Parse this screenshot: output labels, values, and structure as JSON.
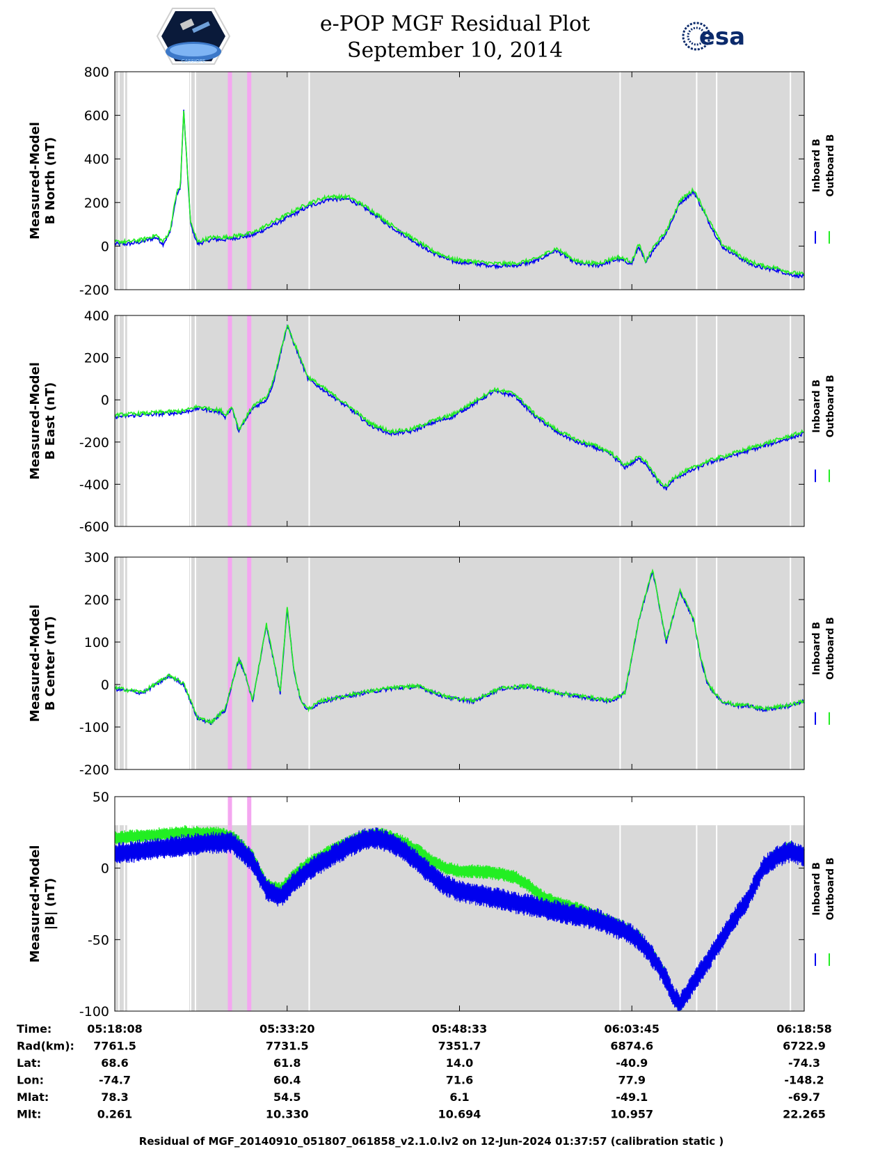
{
  "header": {
    "title": "e-POP MGF Residual Plot",
    "date": "September 10, 2014",
    "esa_logo_text": "esa",
    "cassiope_logo_text": "CASSIOPE"
  },
  "colors": {
    "inboard": "#0000ee",
    "outboard": "#22ee22",
    "background_gray": "#d9d9d9",
    "gap_white": "#ffffff",
    "event_pink": "#f4a6f0"
  },
  "chart_data": [
    {
      "type": "line",
      "id": "north",
      "ylabel": [
        "Measured-Model",
        "B North (nT)"
      ],
      "ylim": [
        -200,
        800
      ],
      "yticks": [
        800,
        600,
        400,
        200,
        0,
        -200
      ],
      "series": [
        {
          "name": "Inboard B",
          "x": [
            0,
            2,
            4,
            6,
            7,
            8,
            9,
            9.5,
            10,
            11,
            12,
            13,
            14,
            16,
            18,
            20,
            22,
            25,
            28,
            31,
            34,
            37,
            40,
            43,
            46,
            49,
            52,
            55,
            58,
            61,
            64,
            67,
            70,
            73,
            75,
            76,
            77,
            78,
            80,
            82,
            84,
            86,
            88,
            90,
            92,
            94,
            96,
            98,
            100
          ],
          "y": [
            10,
            10,
            20,
            40,
            10,
            60,
            240,
            260,
            620,
            100,
            10,
            20,
            30,
            30,
            40,
            50,
            80,
            130,
            180,
            215,
            215,
            160,
            90,
            30,
            -30,
            -70,
            -80,
            -90,
            -90,
            -70,
            -20,
            -80,
            -90,
            -60,
            -80,
            0,
            -80,
            -20,
            60,
            200,
            250,
            120,
            0,
            -40,
            -80,
            -100,
            -110,
            -130,
            -140
          ],
          "style": "noisy"
        },
        {
          "name": "Outboard B",
          "x": [
            0,
            2,
            4,
            6,
            7,
            8,
            9,
            9.5,
            10,
            11,
            12,
            13,
            14,
            16,
            18,
            20,
            22,
            25,
            28,
            31,
            34,
            37,
            40,
            43,
            46,
            49,
            52,
            55,
            58,
            61,
            64,
            67,
            70,
            73,
            75,
            76,
            77,
            78,
            80,
            82,
            84,
            86,
            88,
            90,
            92,
            94,
            96,
            98,
            100
          ],
          "y": [
            20,
            20,
            30,
            50,
            20,
            70,
            250,
            270,
            620,
            110,
            20,
            30,
            40,
            40,
            50,
            60,
            95,
            145,
            195,
            228,
            225,
            170,
            100,
            40,
            -20,
            -60,
            -70,
            -80,
            -80,
            -60,
            -10,
            -70,
            -80,
            -50,
            -70,
            10,
            -70,
            -10,
            70,
            210,
            260,
            130,
            10,
            -30,
            -70,
            -90,
            -100,
            -120,
            -130
          ],
          "style": "noisy"
        }
      ]
    },
    {
      "type": "line",
      "id": "east",
      "ylabel": [
        "Measured-Model",
        "B East (nT)"
      ],
      "ylim": [
        -600,
        400
      ],
      "yticks": [
        400,
        200,
        0,
        -200,
        -400,
        -600
      ],
      "series": [
        {
          "name": "Inboard B",
          "x": [
            0,
            5,
            10,
            12,
            14,
            15.5,
            16,
            17,
            18,
            20,
            22,
            23,
            25,
            28,
            31,
            34,
            37,
            40,
            43,
            46,
            49,
            52,
            55,
            58,
            61,
            64,
            67,
            70,
            72,
            74,
            76,
            77,
            78,
            79,
            80,
            81,
            82,
            84,
            86,
            88,
            90,
            92,
            94,
            96,
            98,
            100
          ],
          "y": [
            -80,
            -70,
            -60,
            -40,
            -50,
            -60,
            -80,
            -40,
            -150,
            -40,
            0,
            80,
            350,
            100,
            30,
            -40,
            -120,
            -160,
            -150,
            -110,
            -80,
            -20,
            40,
            20,
            -80,
            -150,
            -200,
            -230,
            -260,
            -320,
            -280,
            -300,
            -350,
            -400,
            -420,
            -380,
            -360,
            -330,
            -300,
            -280,
            -260,
            -240,
            -220,
            -200,
            -180,
            -160
          ],
          "style": "noisy"
        },
        {
          "name": "Outboard B",
          "x": [
            0,
            5,
            10,
            12,
            14,
            15.5,
            16,
            17,
            18,
            20,
            22,
            23,
            25,
            28,
            31,
            34,
            37,
            40,
            43,
            46,
            49,
            52,
            55,
            58,
            61,
            64,
            67,
            70,
            72,
            74,
            76,
            77,
            78,
            79,
            80,
            81,
            82,
            84,
            86,
            88,
            90,
            92,
            94,
            96,
            98,
            100
          ],
          "y": [
            -72,
            -62,
            -52,
            -32,
            -42,
            -52,
            -72,
            -32,
            -140,
            -30,
            10,
            90,
            355,
            110,
            40,
            -30,
            -110,
            -150,
            -140,
            -100,
            -70,
            -10,
            50,
            30,
            -70,
            -140,
            -190,
            -220,
            -250,
            -310,
            -270,
            -290,
            -340,
            -390,
            -410,
            -370,
            -350,
            -320,
            -290,
            -270,
            -250,
            -230,
            -210,
            -190,
            -170,
            -150
          ],
          "style": "noisy"
        }
      ]
    },
    {
      "type": "line",
      "id": "center",
      "ylabel": [
        "Measured-Model",
        "B Center (nT)"
      ],
      "ylim": [
        -200,
        300
      ],
      "yticks": [
        300,
        200,
        100,
        0,
        -100,
        -200
      ],
      "series": [
        {
          "name": "Inboard B",
          "x": [
            0,
            4,
            8,
            10,
            11,
            12,
            14,
            16,
            18,
            19,
            20,
            22,
            24,
            25,
            26,
            27,
            28,
            30,
            33,
            36,
            40,
            44,
            48,
            52,
            56,
            60,
            64,
            68,
            72,
            74,
            76,
            78,
            80,
            82,
            84,
            85,
            86,
            88,
            90,
            92,
            94,
            96,
            98,
            100
          ],
          "y": [
            -10,
            -20,
            20,
            0,
            -40,
            -80,
            -90,
            -60,
            60,
            20,
            -40,
            140,
            -20,
            180,
            30,
            -40,
            -60,
            -40,
            -30,
            -20,
            -10,
            -5,
            -30,
            -40,
            -10,
            -5,
            -20,
            -30,
            -40,
            -20,
            150,
            270,
            100,
            220,
            150,
            60,
            0,
            -40,
            -50,
            -50,
            -60,
            -55,
            -50,
            -40
          ],
          "style": "noisy"
        },
        {
          "name": "Outboard B",
          "x": [
            0,
            4,
            8,
            10,
            11,
            12,
            14,
            16,
            18,
            19,
            20,
            22,
            24,
            25,
            26,
            27,
            28,
            30,
            33,
            36,
            40,
            44,
            48,
            52,
            56,
            60,
            64,
            68,
            72,
            74,
            76,
            78,
            80,
            82,
            84,
            85,
            86,
            88,
            90,
            92,
            94,
            96,
            98,
            100
          ],
          "y": [
            -8,
            -18,
            22,
            2,
            -38,
            -78,
            -88,
            -58,
            62,
            22,
            -38,
            142,
            -18,
            182,
            32,
            -38,
            -58,
            -38,
            -28,
            -18,
            -8,
            -3,
            -28,
            -38,
            -8,
            -3,
            -18,
            -28,
            -38,
            -18,
            152,
            272,
            102,
            222,
            152,
            62,
            2,
            -38,
            -48,
            -48,
            -58,
            -53,
            -48,
            -38
          ],
          "style": "noisy"
        }
      ]
    },
    {
      "type": "line",
      "id": "total",
      "ylabel": [
        "Measured-Model",
        "|B| (nT)"
      ],
      "ylim": [
        -100,
        50
      ],
      "yticks": [
        50,
        0,
        -50,
        -100
      ],
      "gray_top": 30,
      "series": [
        {
          "name": "Outboard B",
          "x": [
            0,
            5,
            10,
            15,
            17,
            18,
            20,
            22,
            24,
            26,
            28,
            30,
            32,
            34,
            36,
            38,
            40,
            42,
            44,
            46,
            48,
            50,
            52,
            54,
            56,
            58,
            60,
            62,
            64,
            66,
            68,
            70,
            72,
            74,
            76,
            77,
            78,
            79,
            80,
            81,
            82,
            84,
            86,
            88,
            90,
            92,
            94,
            96,
            98,
            100
          ],
          "y": [
            21,
            23,
            25,
            24,
            22,
            18,
            8,
            -12,
            -15,
            -5,
            3,
            8,
            14,
            18,
            22,
            24,
            22,
            18,
            12,
            5,
            0,
            -2,
            -2,
            -3,
            -4,
            -6,
            -12,
            -20,
            -24,
            -27,
            -30,
            -34,
            -38,
            -42,
            -48,
            -55,
            -60,
            -68,
            -75,
            -90,
            -97,
            -80,
            -65,
            -50,
            -35,
            -20,
            0,
            10,
            14,
            10
          ],
          "width": 10
        },
        {
          "name": "Inboard B",
          "x": [
            0,
            5,
            10,
            15,
            17,
            18,
            20,
            22,
            24,
            26,
            28,
            30,
            32,
            34,
            36,
            38,
            40,
            42,
            44,
            46,
            48,
            50,
            52,
            54,
            56,
            58,
            60,
            62,
            64,
            66,
            68,
            70,
            72,
            74,
            76,
            77,
            78,
            79,
            80,
            81,
            82,
            84,
            86,
            88,
            90,
            92,
            94,
            96,
            98,
            100
          ],
          "y": [
            10,
            13,
            16,
            18,
            18,
            14,
            5,
            -15,
            -20,
            -10,
            -2,
            4,
            10,
            15,
            20,
            21,
            18,
            12,
            4,
            -5,
            -12,
            -16,
            -18,
            -20,
            -22,
            -24,
            -26,
            -28,
            -30,
            -32,
            -34,
            -36,
            -40,
            -44,
            -50,
            -56,
            -62,
            -70,
            -78,
            -90,
            -95,
            -80,
            -65,
            -50,
            -35,
            -20,
            0,
            8,
            12,
            8
          ],
          "width": 16
        }
      ]
    }
  ],
  "x_events": {
    "gray_start": 12,
    "white_lines": [
      0.6,
      1.4,
      11,
      11.7,
      28.2,
      73.3,
      84.4,
      87.3,
      98
    ],
    "pink_bands": [
      16.7,
      19.5
    ],
    "xticks": [
      25,
      50,
      75
    ]
  },
  "legend": {
    "inboard": "Inboard B",
    "outboard": "Outboard B"
  },
  "table": {
    "row_labels": [
      "Time:",
      "Rad(km):",
      "Lat:",
      "Lon:",
      "Mlat:",
      "Mlt:"
    ],
    "columns": [
      [
        "05:18:08",
        "7761.5",
        "68.6",
        "-74.7",
        "78.3",
        "0.261"
      ],
      [
        "05:33:20",
        "7731.5",
        "61.8",
        "60.4",
        "54.5",
        "10.330"
      ],
      [
        "05:48:33",
        "7351.7",
        "14.0",
        "71.6",
        "6.1",
        "10.694"
      ],
      [
        "06:03:45",
        "6874.6",
        "-40.9",
        "77.9",
        "-49.1",
        "10.957"
      ],
      [
        "06:18:58",
        "6722.9",
        "-74.3",
        "-148.2",
        "-69.7",
        "22.265"
      ]
    ]
  },
  "footer": "Residual of MGF_20140910_051807_061858_v2.1.0.lv2 on 12-Jun-2024 01:37:57 (calibration static )"
}
